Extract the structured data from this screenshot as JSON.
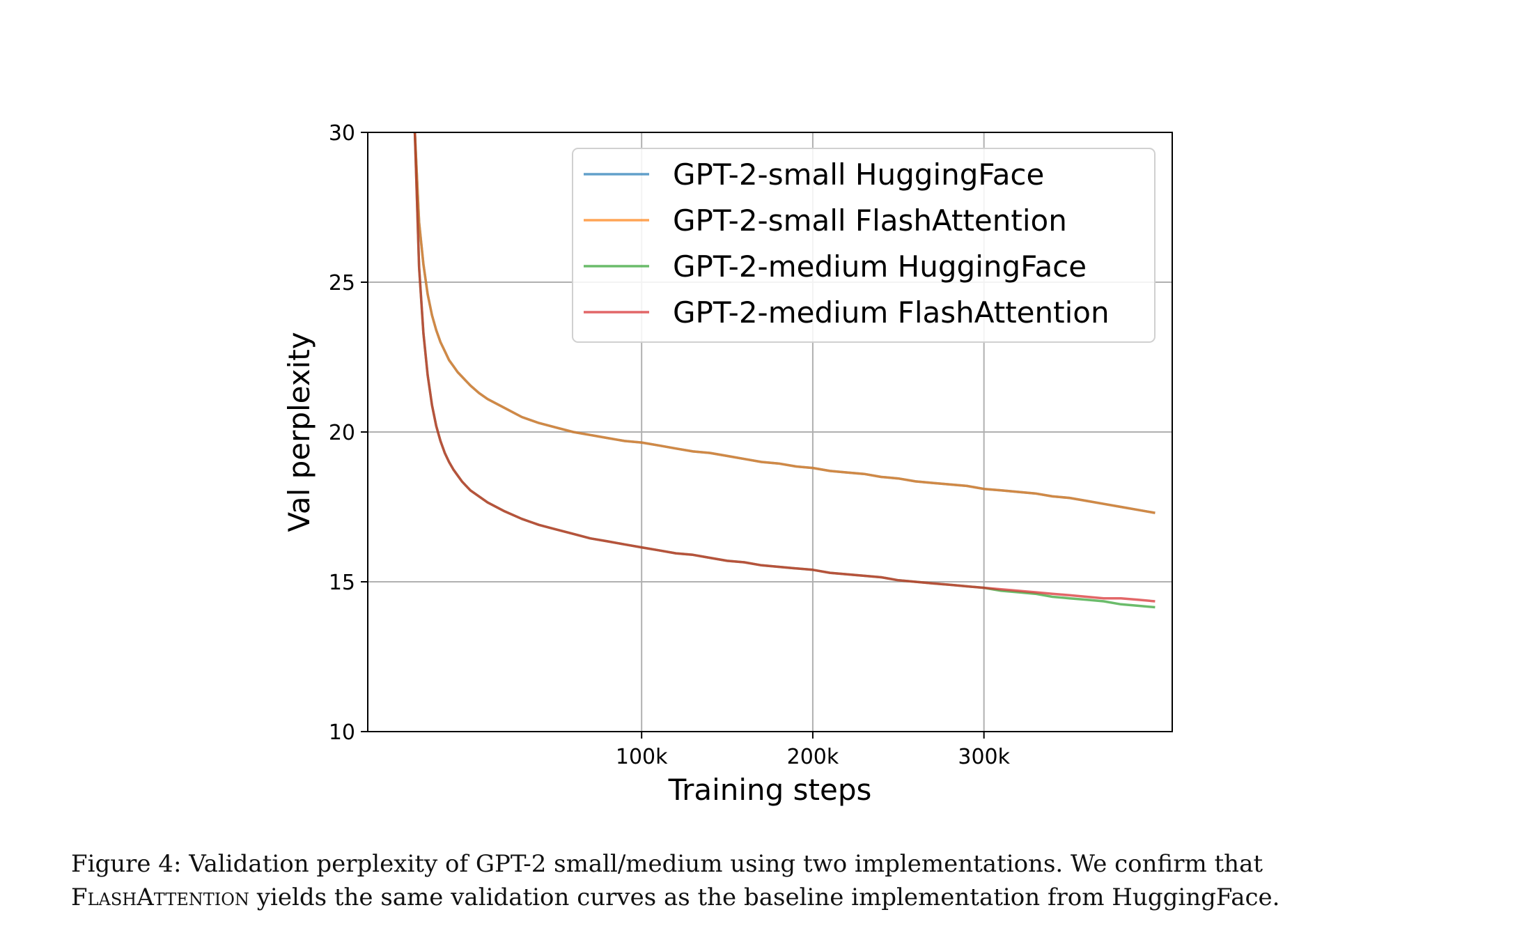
{
  "chart_data": {
    "type": "line",
    "xlabel": "Training steps",
    "ylabel": "Val perplexity",
    "xlim": [
      -60000,
      410000
    ],
    "ylim": [
      10,
      30
    ],
    "xticks": [
      100000,
      200000,
      300000
    ],
    "xtick_labels": [
      "100k",
      "200k",
      "300k"
    ],
    "yticks": [
      10,
      15,
      20,
      25,
      30
    ],
    "ytick_labels": [
      "10",
      "15",
      "20",
      "25",
      "30"
    ],
    "grid": true,
    "legend_position": "upper right",
    "series": [
      {
        "name": "GPT-2-small HuggingFace",
        "color": "#1f77b4",
        "x": [
          -32500,
          -30000,
          -27500,
          -25000,
          -22500,
          -20000,
          -17500,
          -15000,
          -12500,
          -10000,
          -7500,
          -5000,
          -2500,
          0,
          5000,
          10000,
          20000,
          30000,
          40000,
          50000,
          60000,
          70000,
          80000,
          90000,
          100000,
          110000,
          120000,
          130000,
          140000,
          150000,
          160000,
          170000,
          180000,
          190000,
          200000,
          210000,
          220000,
          230000,
          240000,
          250000,
          260000,
          270000,
          280000,
          290000,
          300000,
          310000,
          320000,
          330000,
          340000,
          350000,
          360000,
          370000,
          380000,
          390000,
          400000
        ],
        "y": [
          30.0,
          27.0,
          25.6,
          24.6,
          23.9,
          23.4,
          23.0,
          22.7,
          22.4,
          22.2,
          22.0,
          21.85,
          21.7,
          21.55,
          21.3,
          21.1,
          20.8,
          20.5,
          20.3,
          20.15,
          20.0,
          19.9,
          19.8,
          19.7,
          19.65,
          19.55,
          19.45,
          19.35,
          19.3,
          19.2,
          19.1,
          19.0,
          18.95,
          18.85,
          18.8,
          18.7,
          18.65,
          18.6,
          18.5,
          18.45,
          18.35,
          18.3,
          18.25,
          18.2,
          18.1,
          18.05,
          18.0,
          17.95,
          17.85,
          17.8,
          17.7,
          17.6,
          17.5,
          17.4,
          17.3
        ]
      },
      {
        "name": "GPT-2-small FlashAttention",
        "color": "#ff7f0e",
        "x": [
          -32500,
          -30000,
          -27500,
          -25000,
          -22500,
          -20000,
          -17500,
          -15000,
          -12500,
          -10000,
          -7500,
          -5000,
          -2500,
          0,
          5000,
          10000,
          20000,
          30000,
          40000,
          50000,
          60000,
          70000,
          80000,
          90000,
          100000,
          110000,
          120000,
          130000,
          140000,
          150000,
          160000,
          170000,
          180000,
          190000,
          200000,
          210000,
          220000,
          230000,
          240000,
          250000,
          260000,
          270000,
          280000,
          290000,
          300000,
          310000,
          320000,
          330000,
          340000,
          350000,
          360000,
          370000,
          380000,
          390000,
          400000
        ],
        "y": [
          30.0,
          27.0,
          25.6,
          24.6,
          23.9,
          23.4,
          23.0,
          22.7,
          22.4,
          22.2,
          22.0,
          21.85,
          21.7,
          21.55,
          21.3,
          21.1,
          20.8,
          20.5,
          20.3,
          20.15,
          20.0,
          19.9,
          19.8,
          19.7,
          19.65,
          19.55,
          19.45,
          19.35,
          19.3,
          19.2,
          19.1,
          19.0,
          18.95,
          18.85,
          18.8,
          18.7,
          18.65,
          18.6,
          18.5,
          18.45,
          18.35,
          18.3,
          18.25,
          18.2,
          18.1,
          18.05,
          18.0,
          17.95,
          17.85,
          17.8,
          17.7,
          17.6,
          17.5,
          17.4,
          17.3
        ]
      },
      {
        "name": "GPT-2-medium HuggingFace",
        "color": "#2ca02c",
        "x": [
          -32500,
          -30000,
          -27500,
          -25000,
          -22500,
          -20000,
          -17500,
          -15000,
          -12500,
          -10000,
          -7500,
          -5000,
          -2500,
          0,
          5000,
          10000,
          20000,
          30000,
          40000,
          50000,
          60000,
          70000,
          80000,
          90000,
          100000,
          110000,
          120000,
          130000,
          140000,
          150000,
          160000,
          170000,
          180000,
          190000,
          200000,
          210000,
          220000,
          230000,
          240000,
          250000,
          260000,
          270000,
          280000,
          290000,
          300000,
          310000,
          320000,
          330000,
          340000,
          350000,
          360000,
          370000,
          380000,
          390000,
          400000
        ],
        "y": [
          30.0,
          25.5,
          23.3,
          21.9,
          20.9,
          20.2,
          19.7,
          19.3,
          19.0,
          18.75,
          18.55,
          18.35,
          18.2,
          18.05,
          17.85,
          17.65,
          17.35,
          17.1,
          16.9,
          16.75,
          16.6,
          16.45,
          16.35,
          16.25,
          16.15,
          16.05,
          15.95,
          15.9,
          15.8,
          15.7,
          15.65,
          15.55,
          15.5,
          15.45,
          15.4,
          15.3,
          15.25,
          15.2,
          15.15,
          15.05,
          15.0,
          14.95,
          14.9,
          14.85,
          14.8,
          14.7,
          14.65,
          14.6,
          14.5,
          14.45,
          14.4,
          14.35,
          14.25,
          14.2,
          14.15
        ]
      },
      {
        "name": "GPT-2-medium FlashAttention",
        "color": "#d62728",
        "x": [
          -32500,
          -30000,
          -27500,
          -25000,
          -22500,
          -20000,
          -17500,
          -15000,
          -12500,
          -10000,
          -7500,
          -5000,
          -2500,
          0,
          5000,
          10000,
          20000,
          30000,
          40000,
          50000,
          60000,
          70000,
          80000,
          90000,
          100000,
          110000,
          120000,
          130000,
          140000,
          150000,
          160000,
          170000,
          180000,
          190000,
          200000,
          210000,
          220000,
          230000,
          240000,
          250000,
          260000,
          270000,
          280000,
          290000,
          300000,
          310000,
          320000,
          330000,
          340000,
          350000,
          360000,
          370000,
          380000,
          390000,
          400000
        ],
        "y": [
          30.0,
          25.5,
          23.3,
          21.9,
          20.9,
          20.2,
          19.7,
          19.3,
          19.0,
          18.75,
          18.55,
          18.35,
          18.2,
          18.05,
          17.85,
          17.65,
          17.35,
          17.1,
          16.9,
          16.75,
          16.6,
          16.45,
          16.35,
          16.25,
          16.15,
          16.05,
          15.95,
          15.9,
          15.8,
          15.7,
          15.65,
          15.55,
          15.5,
          15.45,
          15.4,
          15.3,
          15.25,
          15.2,
          15.15,
          15.05,
          15.0,
          14.95,
          14.9,
          14.85,
          14.8,
          14.75,
          14.7,
          14.65,
          14.6,
          14.55,
          14.5,
          14.45,
          14.45,
          14.4,
          14.35
        ]
      }
    ]
  },
  "caption": {
    "line1": "Figure 4:  Validation perplexity of GPT-2 small/medium using two implementations.  We confirm that",
    "line2_smallcaps": "FlashAttention",
    "line2_rest": " yields the same validation curves as the baseline implementation from HuggingFace."
  }
}
